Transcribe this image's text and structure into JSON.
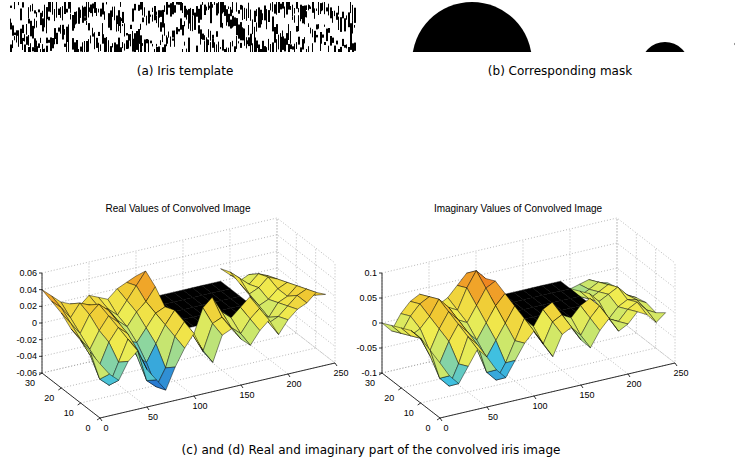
{
  "figure": {
    "panels": [
      {
        "caption": "(a) Iris template"
      },
      {
        "caption": "(b) Corresponding mask"
      }
    ],
    "caption": "(c) and (d) Real and imaginary part of the convolved iris image"
  },
  "chart_data": [
    {
      "type": "surface",
      "title": "Real Values of Convolved Image",
      "x": [
        0,
        10,
        20,
        30,
        40,
        50,
        60,
        70,
        80,
        90,
        100,
        110,
        120,
        130,
        140,
        150,
        160,
        170,
        180,
        190,
        200,
        210,
        220,
        230,
        240
      ],
      "y": [
        0,
        5,
        10,
        15,
        20,
        25,
        30
      ],
      "values": [
        [
          0.005,
          -0.01,
          -0.02,
          0.0,
          0.01,
          -0.015,
          -0.03,
          -0.045,
          -0.02,
          0.0,
          0.015,
          -0.01,
          -0.025,
          0.005,
          0.01,
          -0.005,
          -0.015,
          0.0,
          0.01,
          -0.01,
          0.005,
          0.015,
          0.02,
          0.03,
          0.025
        ],
        [
          0.01,
          -0.025,
          -0.035,
          -0.01,
          0.015,
          0.0,
          -0.04,
          -0.05,
          -0.03,
          0.005,
          0.02,
          0.0,
          -0.02,
          0.01,
          0.015,
          0.0,
          -0.01,
          0.005,
          0.015,
          -0.005,
          0.0,
          0.01,
          0.02,
          0.025,
          0.015
        ],
        [
          0.015,
          -0.005,
          -0.02,
          0.005,
          0.02,
          0.01,
          -0.02,
          -0.03,
          -0.01,
          0.01,
          0.025,
          0.005,
          -0.01,
          0.02,
          0.03,
          0.01,
          0.0,
          0.01,
          0.02,
          0.0,
          -0.01,
          0.005,
          0.01,
          0.02,
          0.005
        ],
        [
          0.02,
          0.005,
          -0.01,
          0.01,
          0.025,
          0.015,
          -0.01,
          -0.015,
          0.0,
          0.015,
          0.02,
          null,
          null,
          null,
          null,
          null,
          null,
          null,
          null,
          0.01,
          -0.005,
          0.0,
          0.01,
          0.015,
          0.0
        ],
        [
          0.03,
          0.015,
          0.0,
          0.02,
          0.03,
          0.02,
          0.005,
          -0.005,
          0.01,
          0.02,
          0.035,
          null,
          null,
          null,
          null,
          null,
          null,
          null,
          null,
          0.015,
          0.0,
          0.005,
          0.015,
          0.01,
          -0.005
        ],
        [
          0.035,
          0.025,
          0.01,
          0.025,
          0.02,
          0.015,
          0.01,
          0.0,
          0.015,
          0.03,
          0.045,
          null,
          null,
          null,
          null,
          null,
          null,
          null,
          null,
          0.02,
          0.01,
          0.0,
          0.01,
          0.005,
          -0.01
        ],
        [
          0.04,
          0.03,
          0.02,
          0.015,
          0.01,
          0.02,
          0.015,
          0.01,
          0.02,
          0.025,
          0.03,
          null,
          null,
          null,
          null,
          null,
          null,
          null,
          null,
          0.015,
          0.005,
          -0.005,
          0.0,
          -0.005,
          -0.015
        ]
      ],
      "xlim": [
        0,
        250
      ],
      "ylim": [
        0,
        30
      ],
      "zlim": [
        -0.06,
        0.06
      ],
      "xticks": [
        0,
        50,
        100,
        150,
        200,
        250
      ],
      "yticks": [
        0,
        10,
        20,
        30
      ],
      "zticks": [
        -0.06,
        -0.04,
        -0.02,
        0,
        0.02,
        0.04,
        0.06
      ],
      "grid": true
    },
    {
      "type": "surface",
      "title": "Imaginary Values of Convolved Image",
      "x": [
        0,
        10,
        20,
        30,
        40,
        50,
        60,
        70,
        80,
        90,
        100,
        110,
        120,
        130,
        140,
        150,
        160,
        170,
        180,
        190,
        200,
        210,
        220,
        230,
        240
      ],
      "y": [
        0,
        5,
        10,
        15,
        20,
        25,
        30
      ],
      "values": [
        [
          0.01,
          -0.02,
          -0.04,
          -0.01,
          0.02,
          0.0,
          -0.03,
          -0.05,
          -0.02,
          0.01,
          0.03,
          0.0,
          -0.03,
          0.01,
          0.02,
          -0.01,
          -0.03,
          0.0,
          0.02,
          -0.01,
          0.0,
          0.02,
          0.01,
          -0.01,
          0.005
        ],
        [
          0.02,
          -0.04,
          -0.06,
          -0.02,
          0.03,
          0.01,
          -0.05,
          -0.07,
          -0.04,
          0.0,
          0.04,
          0.01,
          -0.02,
          0.02,
          0.03,
          0.0,
          -0.02,
          0.01,
          0.03,
          0.0,
          -0.01,
          0.01,
          0.02,
          0.0,
          -0.01
        ],
        [
          0.03,
          -0.01,
          -0.03,
          0.01,
          0.04,
          0.02,
          -0.02,
          -0.04,
          -0.01,
          0.02,
          0.05,
          0.02,
          0.0,
          0.03,
          0.04,
          0.01,
          0.0,
          0.02,
          0.03,
          0.01,
          -0.02,
          0.0,
          0.01,
          0.005,
          -0.005
        ],
        [
          0.03,
          0.01,
          -0.02,
          0.02,
          0.05,
          0.03,
          0.0,
          -0.02,
          0.01,
          0.04,
          0.06,
          null,
          null,
          null,
          null,
          null,
          null,
          null,
          null,
          0.02,
          0.0,
          0.01,
          0.02,
          0.0,
          -0.01
        ],
        [
          0.02,
          0.0,
          0.01,
          0.03,
          0.06,
          0.04,
          0.01,
          0.0,
          0.03,
          0.06,
          0.07,
          null,
          null,
          null,
          null,
          null,
          null,
          null,
          null,
          0.01,
          -0.01,
          0.0,
          0.01,
          -0.005,
          -0.02
        ],
        [
          0.01,
          -0.01,
          0.02,
          0.04,
          0.05,
          0.03,
          0.02,
          0.01,
          0.05,
          0.08,
          0.06,
          null,
          null,
          null,
          null,
          null,
          null,
          null,
          null,
          0.0,
          -0.02,
          -0.01,
          0.0,
          -0.01,
          -0.02
        ],
        [
          0.0,
          -0.02,
          0.01,
          0.03,
          0.04,
          0.02,
          0.01,
          0.02,
          0.04,
          0.06,
          0.05,
          null,
          null,
          null,
          null,
          null,
          null,
          null,
          null,
          -0.01,
          -0.02,
          -0.015,
          -0.01,
          -0.02,
          -0.025
        ]
      ],
      "xlim": [
        0,
        250
      ],
      "ylim": [
        0,
        30
      ],
      "zlim": [
        -0.1,
        0.1
      ],
      "xticks": [
        0,
        50,
        100,
        150,
        200,
        250
      ],
      "yticks": [
        0,
        10,
        20,
        30
      ],
      "zticks": [
        -0.1,
        -0.05,
        0,
        0.05,
        0.1
      ],
      "grid": true
    }
  ]
}
